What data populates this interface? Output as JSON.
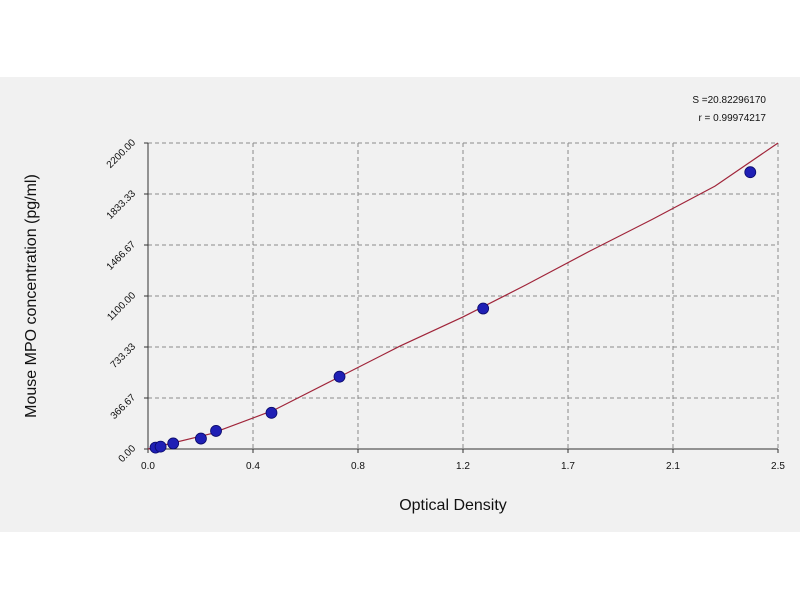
{
  "chart_data": {
    "type": "scatter",
    "title": "",
    "xlabel": "Optical Density",
    "ylabel": "Mouse MPO concentration (pg/ml)",
    "xlim": [
      0,
      2.5
    ],
    "ylim": [
      0,
      2200
    ],
    "x_ticks": [
      {
        "value": 0,
        "label": "0.0"
      },
      {
        "value": 0.4167,
        "label": "0.4"
      },
      {
        "value": 0.8333,
        "label": "0.8"
      },
      {
        "value": 1.25,
        "label": "1.2"
      },
      {
        "value": 1.6667,
        "label": "1.7"
      },
      {
        "value": 2.0833,
        "label": "2.1"
      },
      {
        "value": 2.5,
        "label": "2.5"
      }
    ],
    "y_ticks": [
      {
        "value": 0,
        "label": "0.00"
      },
      {
        "value": 366.67,
        "label": "366.67"
      },
      {
        "value": 733.33,
        "label": "733.33"
      },
      {
        "value": 1100,
        "label": "1100.00"
      },
      {
        "value": 1466.67,
        "label": "1466.67"
      },
      {
        "value": 1833.33,
        "label": "1833.33"
      },
      {
        "value": 2200,
        "label": "2200.00"
      }
    ],
    "grid": true,
    "annotations": [
      "S =20.82296170",
      "r = 0.99974217"
    ],
    "point_color": "#1f1fb5",
    "curve_color": "#a0253a",
    "points": [
      {
        "x": 0.03,
        "y": 10
      },
      {
        "x": 0.05,
        "y": 17
      },
      {
        "x": 0.1,
        "y": 40
      },
      {
        "x": 0.21,
        "y": 75
      },
      {
        "x": 0.27,
        "y": 130
      },
      {
        "x": 0.49,
        "y": 260
      },
      {
        "x": 0.76,
        "y": 520
      },
      {
        "x": 1.33,
        "y": 1010
      },
      {
        "x": 2.39,
        "y": 1990
      }
    ],
    "curve": [
      {
        "x": 0,
        "y": 0
      },
      {
        "x": 0.25,
        "y": 110
      },
      {
        "x": 0.5,
        "y": 280
      },
      {
        "x": 0.75,
        "y": 510
      },
      {
        "x": 1.0,
        "y": 740
      },
      {
        "x": 1.25,
        "y": 950
      },
      {
        "x": 1.5,
        "y": 1180
      },
      {
        "x": 1.75,
        "y": 1420
      },
      {
        "x": 2.0,
        "y": 1650
      },
      {
        "x": 2.25,
        "y": 1890
      },
      {
        "x": 2.5,
        "y": 2200
      }
    ]
  }
}
